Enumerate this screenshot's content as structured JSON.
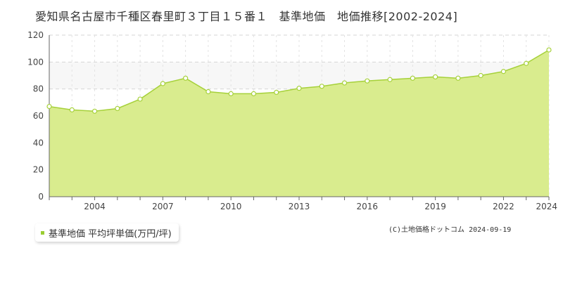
{
  "title": "愛知県名古屋市千種区春里町３丁目１５番１　基準地価　地価推移[2002-2024]",
  "legend_label": "基準地価 平均坪単価(万円/坪)",
  "copyright": "(C)土地価格ドットコム 2024-09-19",
  "colors": {
    "fill": "#d9ec8e",
    "line": "#a6d13a",
    "band": "#f7f7f7",
    "grid": "#d6d6d6",
    "marker": "#ffffff"
  },
  "chart_data": {
    "type": "area",
    "x": [
      2002,
      2003,
      2004,
      2005,
      2006,
      2007,
      2008,
      2009,
      2010,
      2011,
      2012,
      2013,
      2014,
      2015,
      2016,
      2017,
      2018,
      2019,
      2020,
      2021,
      2022,
      2023,
      2024
    ],
    "series": [
      {
        "name": "基準地価 平均坪単価(万円/坪)",
        "values": [
          67,
          64.5,
          63.5,
          65.5,
          72.5,
          84,
          88,
          78,
          76.5,
          76.5,
          77.5,
          80.5,
          82,
          84.5,
          86,
          87,
          88,
          89,
          88,
          90,
          93,
          99,
          109
        ]
      }
    ],
    "x_ticks": [
      "2004",
      "2007",
      "2010",
      "2013",
      "2016",
      "2019",
      "2022",
      "2024"
    ],
    "y_ticks": [
      "0",
      "20",
      "40",
      "60",
      "80",
      "100",
      "120"
    ],
    "ylim": [
      0,
      120
    ],
    "xlim": [
      2002,
      2024
    ],
    "grid": true,
    "legend_position": "bottom-left"
  }
}
